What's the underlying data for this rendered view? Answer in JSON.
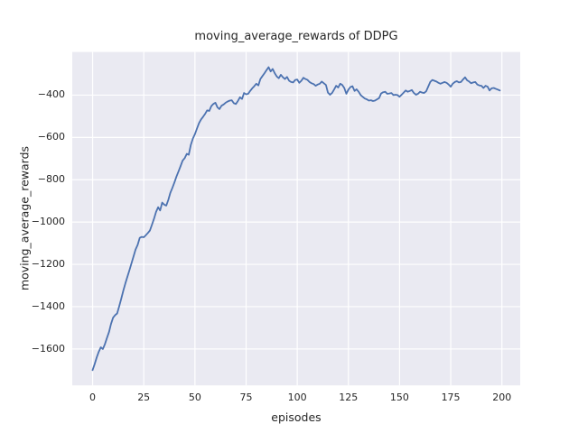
{
  "chart_data": {
    "type": "line",
    "title": "moving_average_rewards of DDPG",
    "xlabel": "episodes",
    "ylabel": "moving_average_rewards",
    "legend": false,
    "grid": true,
    "xlim": [
      -9.95,
      208.95
    ],
    "ylim": [
      -1772,
      -196
    ],
    "xticks": [
      0,
      25,
      50,
      75,
      100,
      125,
      150,
      175,
      200
    ],
    "yticks": [
      -400,
      -600,
      -800,
      -1000,
      -1200,
      -1400,
      -1600
    ],
    "style": {
      "axes_bg": "#eaeaf2",
      "grid_color": "#ffffff",
      "line_color": "#4c72b0",
      "text_color": "#262626",
      "figure_bg": "#ffffff"
    },
    "series": [
      {
        "name": "moving average reward",
        "color": "#4c72b0",
        "points": [
          [
            0,
            -1700
          ],
          [
            1,
            -1672
          ],
          [
            2,
            -1640
          ],
          [
            3,
            -1614
          ],
          [
            4,
            -1592
          ],
          [
            5,
            -1600
          ],
          [
            6,
            -1578
          ],
          [
            7,
            -1548
          ],
          [
            8,
            -1520
          ],
          [
            9,
            -1482
          ],
          [
            10,
            -1452
          ],
          [
            11,
            -1440
          ],
          [
            12,
            -1432
          ],
          [
            13,
            -1398
          ],
          [
            14,
            -1362
          ],
          [
            15,
            -1325
          ],
          [
            16,
            -1290
          ],
          [
            17,
            -1258
          ],
          [
            18,
            -1228
          ],
          [
            19,
            -1195
          ],
          [
            20,
            -1162
          ],
          [
            21,
            -1130
          ],
          [
            22,
            -1108
          ],
          [
            23,
            -1075
          ],
          [
            24,
            -1070
          ],
          [
            25,
            -1072
          ],
          [
            26,
            -1062
          ],
          [
            27,
            -1052
          ],
          [
            28,
            -1040
          ],
          [
            29,
            -1012
          ],
          [
            30,
            -985
          ],
          [
            31,
            -952
          ],
          [
            32,
            -930
          ],
          [
            33,
            -945
          ],
          [
            34,
            -908
          ],
          [
            35,
            -918
          ],
          [
            36,
            -922
          ],
          [
            37,
            -895
          ],
          [
            38,
            -862
          ],
          [
            39,
            -838
          ],
          [
            40,
            -812
          ],
          [
            41,
            -785
          ],
          [
            42,
            -760
          ],
          [
            43,
            -735
          ],
          [
            44,
            -710
          ],
          [
            45,
            -698
          ],
          [
            46,
            -678
          ],
          [
            47,
            -682
          ],
          [
            48,
            -635
          ],
          [
            49,
            -605
          ],
          [
            50,
            -585
          ],
          [
            51,
            -558
          ],
          [
            52,
            -532
          ],
          [
            53,
            -515
          ],
          [
            54,
            -502
          ],
          [
            55,
            -488
          ],
          [
            56,
            -472
          ],
          [
            57,
            -475
          ],
          [
            58,
            -452
          ],
          [
            59,
            -442
          ],
          [
            60,
            -436
          ],
          [
            61,
            -458
          ],
          [
            62,
            -466
          ],
          [
            63,
            -450
          ],
          [
            64,
            -444
          ],
          [
            65,
            -436
          ],
          [
            66,
            -430
          ],
          [
            67,
            -426
          ],
          [
            68,
            -424
          ],
          [
            69,
            -438
          ],
          [
            70,
            -442
          ],
          [
            71,
            -428
          ],
          [
            72,
            -410
          ],
          [
            73,
            -418
          ],
          [
            74,
            -390
          ],
          [
            75,
            -396
          ],
          [
            76,
            -394
          ],
          [
            77,
            -380
          ],
          [
            78,
            -368
          ],
          [
            79,
            -358
          ],
          [
            80,
            -346
          ],
          [
            81,
            -354
          ],
          [
            82,
            -324
          ],
          [
            83,
            -310
          ],
          [
            84,
            -296
          ],
          [
            85,
            -282
          ],
          [
            86,
            -268
          ],
          [
            87,
            -288
          ],
          [
            88,
            -276
          ],
          [
            89,
            -296
          ],
          [
            90,
            -312
          ],
          [
            91,
            -320
          ],
          [
            92,
            -304
          ],
          [
            93,
            -316
          ],
          [
            94,
            -324
          ],
          [
            95,
            -314
          ],
          [
            96,
            -332
          ],
          [
            97,
            -338
          ],
          [
            98,
            -340
          ],
          [
            99,
            -328
          ],
          [
            100,
            -326
          ],
          [
            101,
            -342
          ],
          [
            102,
            -332
          ],
          [
            103,
            -318
          ],
          [
            104,
            -324
          ],
          [
            105,
            -328
          ],
          [
            106,
            -338
          ],
          [
            107,
            -344
          ],
          [
            108,
            -348
          ],
          [
            109,
            -356
          ],
          [
            110,
            -350
          ],
          [
            111,
            -346
          ],
          [
            112,
            -336
          ],
          [
            113,
            -344
          ],
          [
            114,
            -352
          ],
          [
            115,
            -388
          ],
          [
            116,
            -398
          ],
          [
            117,
            -390
          ],
          [
            118,
            -374
          ],
          [
            119,
            -356
          ],
          [
            120,
            -364
          ],
          [
            121,
            -346
          ],
          [
            122,
            -352
          ],
          [
            123,
            -366
          ],
          [
            124,
            -394
          ],
          [
            125,
            -374
          ],
          [
            126,
            -362
          ],
          [
            127,
            -358
          ],
          [
            128,
            -380
          ],
          [
            129,
            -372
          ],
          [
            130,
            -384
          ],
          [
            131,
            -400
          ],
          [
            132,
            -408
          ],
          [
            133,
            -416
          ],
          [
            134,
            -420
          ],
          [
            135,
            -426
          ],
          [
            136,
            -424
          ],
          [
            137,
            -428
          ],
          [
            138,
            -426
          ],
          [
            139,
            -420
          ],
          [
            140,
            -414
          ],
          [
            141,
            -392
          ],
          [
            142,
            -386
          ],
          [
            143,
            -384
          ],
          [
            144,
            -394
          ],
          [
            145,
            -392
          ],
          [
            146,
            -390
          ],
          [
            147,
            -400
          ],
          [
            148,
            -398
          ],
          [
            149,
            -400
          ],
          [
            150,
            -408
          ],
          [
            151,
            -398
          ],
          [
            152,
            -388
          ],
          [
            153,
            -378
          ],
          [
            154,
            -384
          ],
          [
            155,
            -380
          ],
          [
            156,
            -376
          ],
          [
            157,
            -390
          ],
          [
            158,
            -398
          ],
          [
            159,
            -394
          ],
          [
            160,
            -384
          ],
          [
            161,
            -388
          ],
          [
            162,
            -390
          ],
          [
            163,
            -382
          ],
          [
            164,
            -360
          ],
          [
            165,
            -338
          ],
          [
            166,
            -328
          ],
          [
            167,
            -332
          ],
          [
            168,
            -336
          ],
          [
            169,
            -342
          ],
          [
            170,
            -346
          ],
          [
            171,
            -342
          ],
          [
            172,
            -338
          ],
          [
            173,
            -342
          ],
          [
            174,
            -350
          ],
          [
            175,
            -360
          ],
          [
            176,
            -346
          ],
          [
            177,
            -338
          ],
          [
            178,
            -334
          ],
          [
            179,
            -340
          ],
          [
            180,
            -338
          ],
          [
            181,
            -326
          ],
          [
            182,
            -316
          ],
          [
            183,
            -330
          ],
          [
            184,
            -336
          ],
          [
            185,
            -344
          ],
          [
            186,
            -340
          ],
          [
            187,
            -338
          ],
          [
            188,
            -350
          ],
          [
            189,
            -354
          ],
          [
            190,
            -356
          ],
          [
            191,
            -366
          ],
          [
            192,
            -356
          ],
          [
            193,
            -360
          ],
          [
            194,
            -378
          ],
          [
            195,
            -368
          ],
          [
            196,
            -366
          ],
          [
            197,
            -370
          ],
          [
            198,
            -374
          ],
          [
            199,
            -378
          ]
        ]
      }
    ]
  }
}
